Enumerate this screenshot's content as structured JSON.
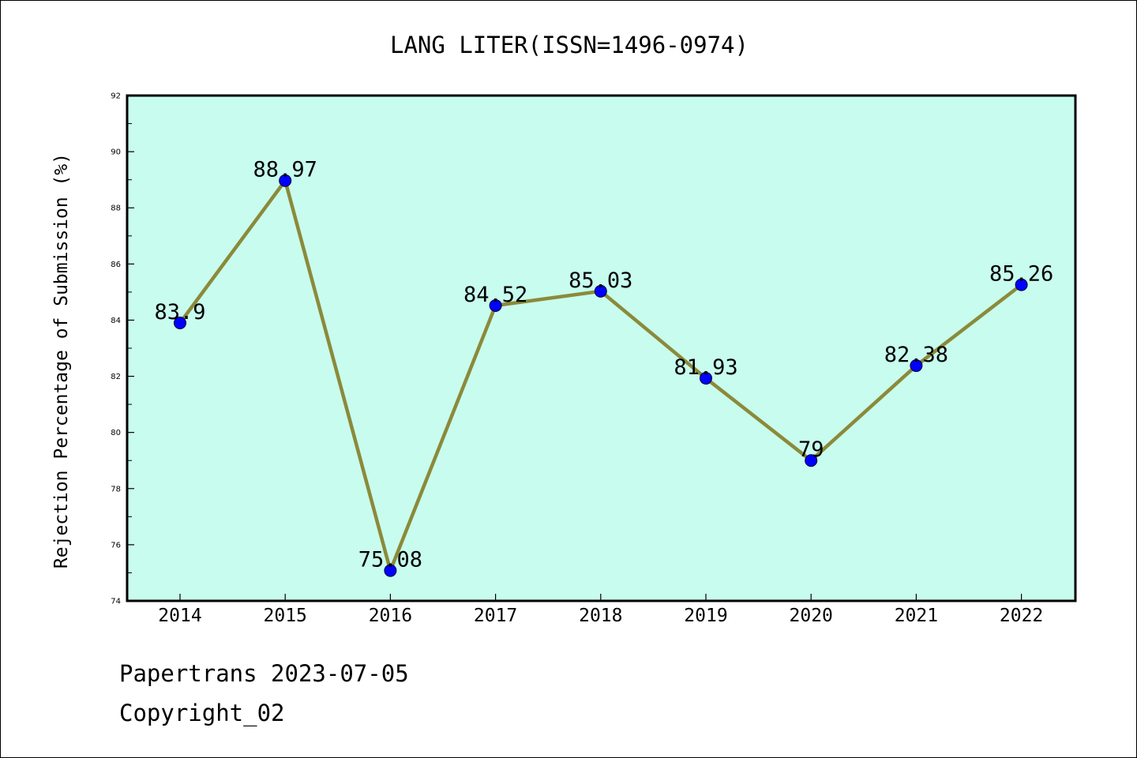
{
  "chart_data": {
    "type": "line",
    "title": "LANG LITER(ISSN=1496-0974)",
    "xlabel": "",
    "ylabel": "Rejection Percentage of Submission (%)",
    "categories": [
      "2014",
      "2015",
      "2016",
      "2017",
      "2018",
      "2019",
      "2020",
      "2021",
      "2022"
    ],
    "series": [
      {
        "values": [
          83.9,
          88.97,
          75.08,
          84.52,
          85.03,
          81.93,
          79,
          82.38,
          85.26
        ],
        "labels": [
          "83.9",
          "88.97",
          "75.08",
          "84.52",
          "85.03",
          "81.93",
          "79",
          "82.38",
          "85.26"
        ]
      }
    ],
    "ylim": [
      74,
      92
    ],
    "yticks": [
      "74",
      "76",
      "78",
      "80",
      "82",
      "84",
      "86",
      "88",
      "90",
      "92"
    ],
    "grid": false,
    "colors": {
      "plot_background": "#c8fcee",
      "line": "#8b8a3a",
      "marker": "#0000ff",
      "axis": "#000000"
    }
  },
  "footer": {
    "line1": "Papertrans 2023-07-05",
    "line2": "Copyright_02"
  }
}
